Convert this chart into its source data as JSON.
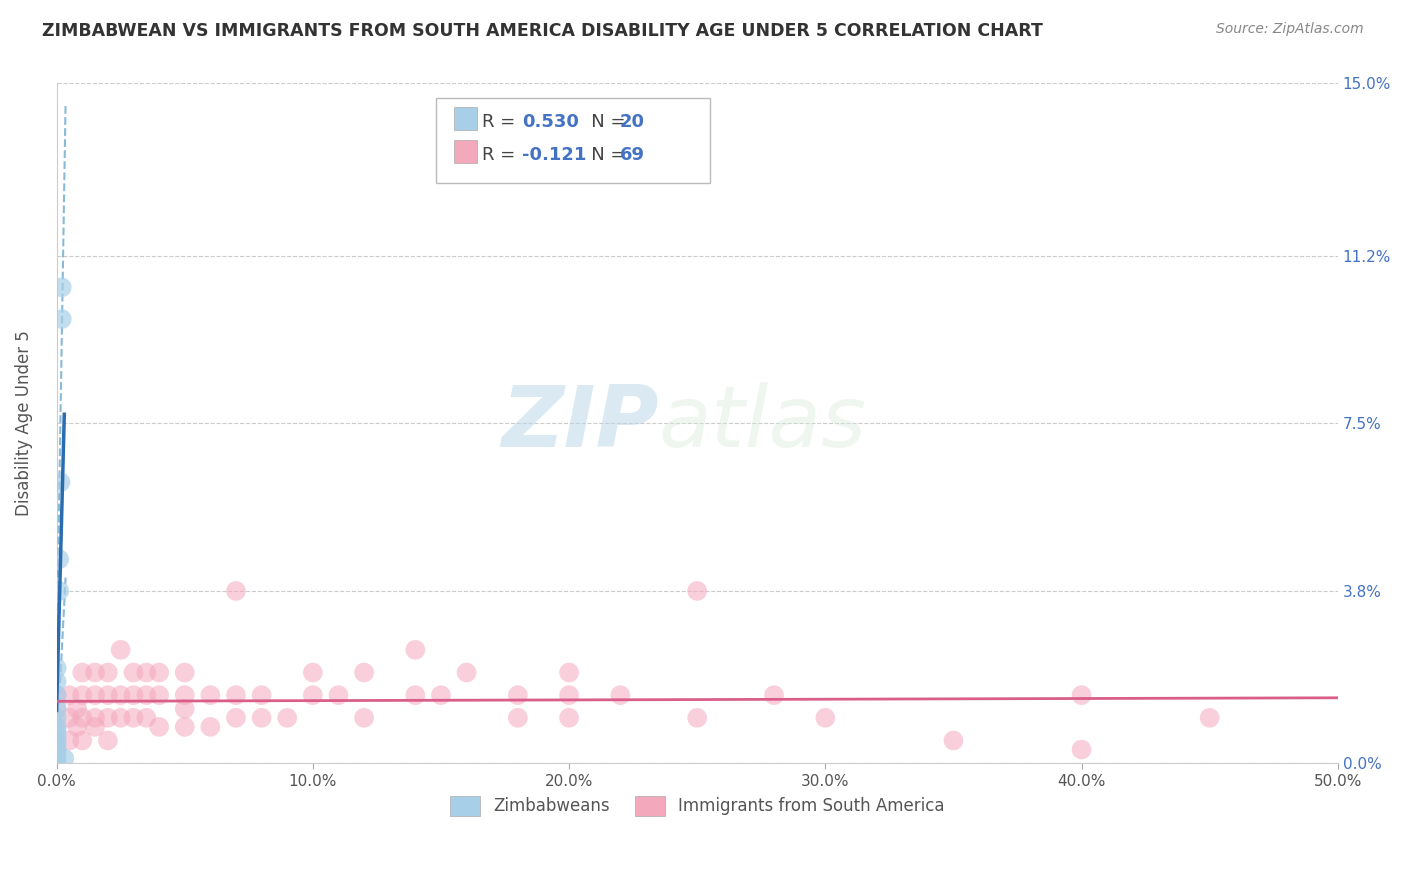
{
  "title": "ZIMBABWEAN VS IMMIGRANTS FROM SOUTH AMERICA DISABILITY AGE UNDER 5 CORRELATION CHART",
  "source": "Source: ZipAtlas.com",
  "xlabel_vals": [
    0.0,
    10.0,
    20.0,
    30.0,
    40.0,
    50.0
  ],
  "ylabel_vals": [
    0.0,
    3.8,
    7.5,
    11.2,
    15.0
  ],
  "ylabel_label": "Disability Age Under 5",
  "xlim": [
    0.0,
    50.0
  ],
  "ylim": [
    0.0,
    15.0
  ],
  "legend_label1": "Zimbabweans",
  "legend_label2": "Immigrants from South America",
  "R1": 0.53,
  "N1": 20,
  "R2": -0.121,
  "N2": 69,
  "blue_color": "#a8cfe8",
  "pink_color": "#f4a8bc",
  "blue_line_color": "#2b6cb0",
  "pink_line_color": "#d95f8a",
  "blue_ci_color": "#7ab3d4",
  "blue_scatter": [
    [
      0.0,
      0.0
    ],
    [
      0.0,
      0.1
    ],
    [
      0.0,
      0.2
    ],
    [
      0.0,
      0.3
    ],
    [
      0.0,
      0.4
    ],
    [
      0.0,
      0.5
    ],
    [
      0.0,
      0.6
    ],
    [
      0.0,
      0.7
    ],
    [
      0.0,
      0.8
    ],
    [
      0.0,
      1.0
    ],
    [
      0.0,
      1.2
    ],
    [
      0.0,
      1.5
    ],
    [
      0.0,
      1.8
    ],
    [
      0.0,
      2.1
    ],
    [
      0.1,
      3.8
    ],
    [
      0.1,
      4.5
    ],
    [
      0.15,
      6.2
    ],
    [
      0.2,
      9.8
    ],
    [
      0.2,
      10.5
    ],
    [
      0.3,
      0.1
    ]
  ],
  "pink_scatter": [
    [
      0.0,
      1.5
    ],
    [
      0.0,
      1.2
    ],
    [
      0.0,
      0.8
    ],
    [
      0.0,
      0.5
    ],
    [
      0.0,
      0.3
    ],
    [
      0.5,
      0.5
    ],
    [
      0.5,
      1.0
    ],
    [
      0.5,
      1.5
    ],
    [
      0.8,
      1.2
    ],
    [
      0.8,
      0.8
    ],
    [
      1.0,
      0.5
    ],
    [
      1.0,
      1.0
    ],
    [
      1.0,
      1.5
    ],
    [
      1.0,
      2.0
    ],
    [
      1.5,
      1.0
    ],
    [
      1.5,
      1.5
    ],
    [
      1.5,
      2.0
    ],
    [
      1.5,
      0.8
    ],
    [
      2.0,
      1.0
    ],
    [
      2.0,
      1.5
    ],
    [
      2.0,
      2.0
    ],
    [
      2.0,
      0.5
    ],
    [
      2.5,
      1.0
    ],
    [
      2.5,
      1.5
    ],
    [
      2.5,
      2.5
    ],
    [
      3.0,
      1.5
    ],
    [
      3.0,
      2.0
    ],
    [
      3.0,
      1.0
    ],
    [
      3.5,
      1.5
    ],
    [
      3.5,
      2.0
    ],
    [
      3.5,
      1.0
    ],
    [
      4.0,
      1.5
    ],
    [
      4.0,
      2.0
    ],
    [
      4.0,
      0.8
    ],
    [
      5.0,
      1.5
    ],
    [
      5.0,
      2.0
    ],
    [
      5.0,
      0.8
    ],
    [
      5.0,
      1.2
    ],
    [
      6.0,
      1.5
    ],
    [
      6.0,
      0.8
    ],
    [
      7.0,
      3.8
    ],
    [
      7.0,
      1.5
    ],
    [
      7.0,
      1.0
    ],
    [
      8.0,
      1.5
    ],
    [
      8.0,
      1.0
    ],
    [
      9.0,
      1.0
    ],
    [
      10.0,
      1.5
    ],
    [
      10.0,
      2.0
    ],
    [
      11.0,
      1.5
    ],
    [
      12.0,
      2.0
    ],
    [
      12.0,
      1.0
    ],
    [
      14.0,
      1.5
    ],
    [
      14.0,
      2.5
    ],
    [
      15.0,
      1.5
    ],
    [
      16.0,
      2.0
    ],
    [
      18.0,
      1.5
    ],
    [
      18.0,
      1.0
    ],
    [
      20.0,
      1.5
    ],
    [
      20.0,
      1.0
    ],
    [
      20.0,
      2.0
    ],
    [
      22.0,
      1.5
    ],
    [
      25.0,
      1.0
    ],
    [
      25.0,
      3.8
    ],
    [
      28.0,
      1.5
    ],
    [
      30.0,
      1.0
    ],
    [
      35.0,
      0.5
    ],
    [
      40.0,
      1.5
    ],
    [
      40.0,
      0.3
    ],
    [
      45.0,
      1.0
    ]
  ],
  "watermark_zip": "ZIP",
  "watermark_atlas": "atlas",
  "background_color": "#ffffff",
  "grid_color": "#cccccc"
}
